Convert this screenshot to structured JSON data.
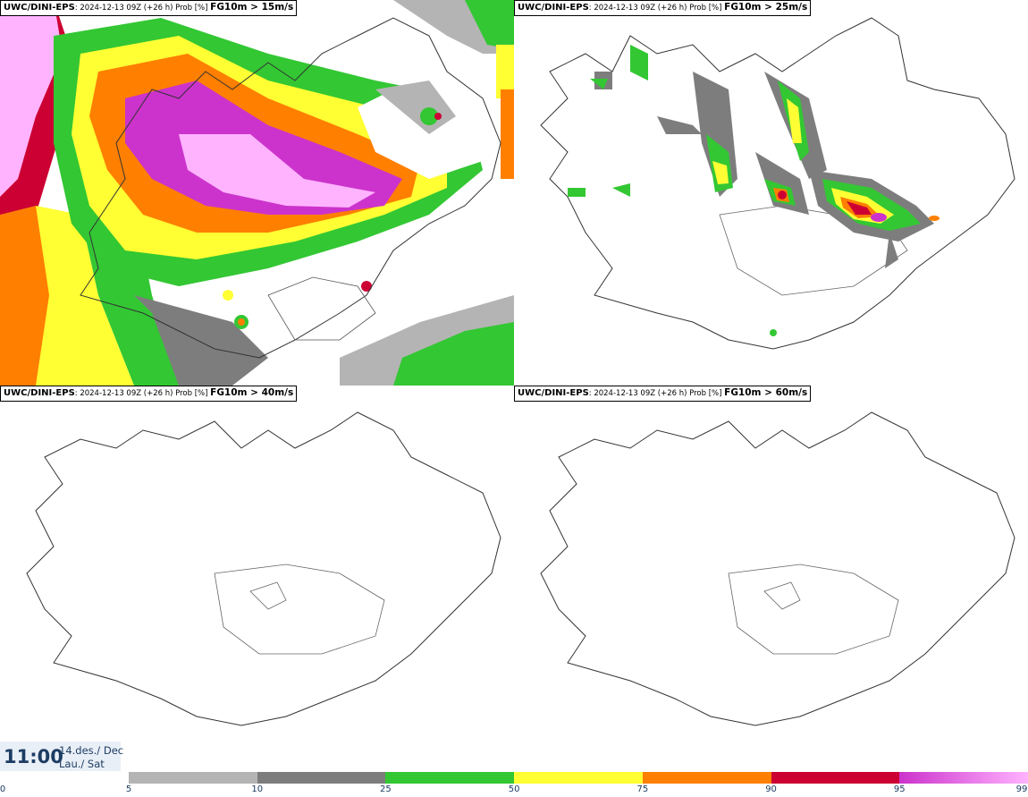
{
  "panels": [
    {
      "id": "p15",
      "model": "UWC/DINI-EPS",
      "meta": ": 2024-12-13 09Z (+26 h) Prob [%] ",
      "threshold": "FG10m > 15m/s"
    },
    {
      "id": "p25",
      "model": "UWC/DINI-EPS",
      "meta": ": 2024-12-13 09Z (+26 h) Prob [%] ",
      "threshold": "FG10m > 25m/s"
    },
    {
      "id": "p40",
      "model": "UWC/DINI-EPS",
      "meta": ": 2024-12-13 09Z (+26 h) Prob [%] ",
      "threshold": "FG10m > 40m/s"
    },
    {
      "id": "p60",
      "model": "UWC/DINI-EPS",
      "meta": ": 2024-12-13 09Z (+26 h) Prob [%] ",
      "threshold": "FG10m > 60m/s"
    }
  ],
  "time": {
    "clock": "11:00",
    "date_line1": "14.des./ Dec",
    "date_line2": "Lau./ Sat"
  },
  "colorbar": {
    "ticks": [
      "0",
      "5",
      "10",
      "25",
      "50",
      "75",
      "90",
      "95",
      "99"
    ],
    "bins": [
      {
        "from": 5,
        "to": 10,
        "color": "#b4b4b4"
      },
      {
        "from": 10,
        "to": 25,
        "color": "#7d7d7d"
      },
      {
        "from": 25,
        "to": 50,
        "color": "#33c733"
      },
      {
        "from": 50,
        "to": 75,
        "color": "#ffff33"
      },
      {
        "from": 75,
        "to": 90,
        "color": "#ff7f00"
      },
      {
        "from": 90,
        "to": 95,
        "color": "#cc0033"
      },
      {
        "from": 95,
        "to": 99,
        "color": "#cc33cc",
        "to_color": "#ffb3ff"
      }
    ]
  }
}
